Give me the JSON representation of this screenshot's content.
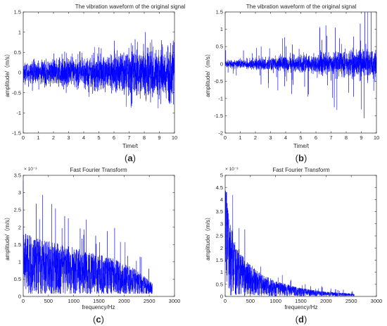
{
  "figure_colors": {
    "signal": "#0000ff",
    "axis": "#262626"
  },
  "chart_data": [
    {
      "id": "a",
      "type": "line",
      "title": "The vibration waveform of the original signal",
      "xlabel": "Time/t",
      "ylabel": "amplitude/（m/s）",
      "caption": "a",
      "xlim": [
        0,
        10
      ],
      "ylim": [
        -1.5,
        1.5
      ],
      "xticks": [
        0,
        1,
        2,
        3,
        4,
        5,
        6,
        7,
        8,
        9,
        10
      ],
      "yticks": [
        -1.5,
        -1,
        -0.5,
        0,
        0.5,
        1,
        1.5
      ],
      "xtick_labels": [
        "0",
        "1",
        "2",
        "3",
        "4",
        "5",
        "6",
        "7",
        "8",
        "9",
        "10"
      ],
      "ytick_labels": [
        "-1.5",
        "-1",
        "-0.5",
        "0",
        "0.5",
        "1",
        "1.5"
      ],
      "yexponent": "",
      "grid": false,
      "series": [
        {
          "points": 2400,
          "envelope_x": [
            0,
            2,
            4,
            6,
            8,
            10
          ],
          "envelope_y": [
            0.26,
            0.35,
            0.44,
            0.55,
            0.66,
            0.78
          ],
          "peak_max": 1.0,
          "peak_min": -1.1,
          "offset": 0,
          "style": "noise"
        }
      ]
    },
    {
      "id": "b",
      "type": "line",
      "title": "The vibration waveform of the original signal",
      "xlabel": "Time/t",
      "ylabel": "amplitude/（m/s）",
      "caption": "b",
      "xlim": [
        0,
        10
      ],
      "ylim": [
        -2,
        1.5
      ],
      "xticks": [
        0,
        1,
        2,
        3,
        4,
        5,
        6,
        7,
        8,
        9,
        10
      ],
      "yticks": [
        -2,
        -1.5,
        -1,
        -0.5,
        0,
        0.5,
        1,
        1.5
      ],
      "xtick_labels": [
        "0",
        "1",
        "2",
        "3",
        "4",
        "5",
        "6",
        "7",
        "8",
        "9",
        "10"
      ],
      "ytick_labels": [
        "-2",
        "-1.5",
        "-1",
        "-0.5",
        "0",
        "0.5",
        "1",
        "1.5"
      ],
      "yexponent": "",
      "grid": false,
      "series": [
        {
          "points": 2400,
          "envelope_x": [
            0,
            2,
            4,
            6,
            8,
            10
          ],
          "envelope_y": [
            0.06,
            0.09,
            0.13,
            0.17,
            0.22,
            0.28
          ],
          "peak_max": 1.5,
          "peak_min": -1.8,
          "offset": 0,
          "style": "spiky"
        }
      ]
    },
    {
      "id": "c",
      "type": "line",
      "title": "Fast Fourier Transform",
      "xlabel": "frequency/Hz",
      "ylabel": "amplitude/（m/s）",
      "caption": "c",
      "xlim": [
        0,
        3000
      ],
      "ylim": [
        0,
        3.5
      ],
      "xticks": [
        0,
        500,
        1000,
        1500,
        2000,
        2500,
        3000
      ],
      "yticks": [
        0,
        0.5,
        1,
        1.5,
        2,
        2.5,
        3,
        3.5
      ],
      "xtick_labels": [
        "0",
        "500",
        "1000",
        "1500",
        "2000",
        "2500",
        "3000"
      ],
      "ytick_labels": [
        "0",
        "0.5",
        "1",
        "1.5",
        "2",
        "2.5",
        "3",
        "3.5"
      ],
      "yexponent": "× 10⁻³",
      "grid": false,
      "series": [
        {
          "points": 1600,
          "envelope_x": [
            0,
            300,
            800,
            1300,
            1800,
            2200,
            2560
          ],
          "envelope_y": [
            1.6,
            1.45,
            1.3,
            1.12,
            0.95,
            0.7,
            0.35
          ],
          "peak_max": 3.35,
          "peak_min": 0,
          "offset": 0.08,
          "end_x": 2560,
          "style": "spectrum"
        }
      ]
    },
    {
      "id": "d",
      "type": "line",
      "title": "Fast Fourier Transform",
      "xlabel": "frequency/Hz",
      "ylabel": "amplitude/（m/s）",
      "caption": "d",
      "xlim": [
        0,
        3000
      ],
      "ylim": [
        0,
        5
      ],
      "xticks": [
        0,
        500,
        1000,
        1500,
        2000,
        2500,
        3000
      ],
      "yticks": [
        0,
        0.5,
        1,
        1.5,
        2,
        2.5,
        3,
        3.5,
        4,
        4.5,
        5
      ],
      "xtick_labels": [
        "0",
        "500",
        "1000",
        "1500",
        "2000",
        "2500",
        "3000"
      ],
      "ytick_labels": [
        "0",
        "0.5",
        "1",
        "1.5",
        "2",
        "2.5",
        "3",
        "3.5",
        "4",
        "4.5",
        "5"
      ],
      "yexponent": "× 10⁻³",
      "grid": false,
      "series": [
        {
          "points": 1600,
          "envelope_x": [
            0,
            80,
            200,
            400,
            700,
            1000,
            1500,
            2000,
            2560
          ],
          "envelope_y": [
            4.0,
            2.8,
            1.9,
            1.3,
            0.85,
            0.55,
            0.3,
            0.17,
            0.1
          ],
          "peak_max": 4.3,
          "peak_min": 0,
          "offset": 0.02,
          "end_x": 2560,
          "style": "spectrum"
        }
      ]
    }
  ]
}
